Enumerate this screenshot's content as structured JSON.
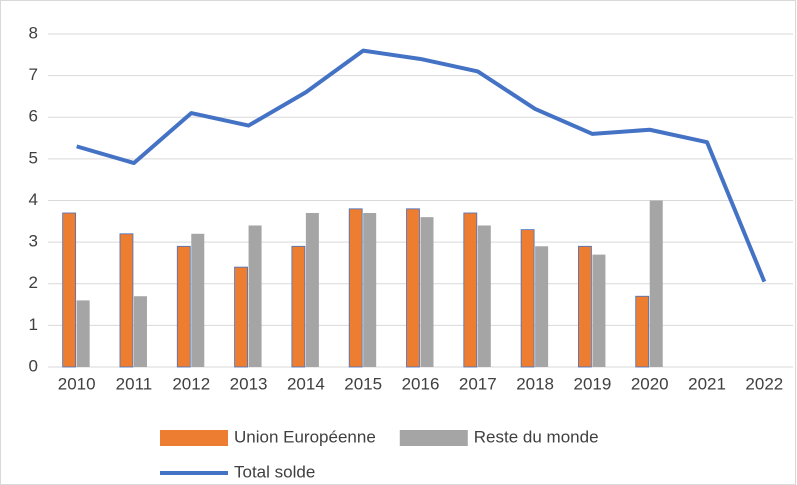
{
  "chart_data": {
    "type": "bar",
    "categories": [
      "2010",
      "2011",
      "2012",
      "2013",
      "2014",
      "2015",
      "2016",
      "2017",
      "2018",
      "2019",
      "2020",
      "2021",
      "2022"
    ],
    "series": [
      {
        "name": "Union Européenne",
        "color": "#ed7d31",
        "values": [
          3.7,
          3.2,
          2.9,
          2.4,
          2.9,
          3.8,
          3.8,
          3.7,
          3.3,
          2.9,
          1.7,
          null,
          null
        ]
      },
      {
        "name": "Reste du monde",
        "color": "#a5a5a5",
        "values": [
          1.6,
          1.7,
          3.2,
          3.4,
          3.7,
          3.7,
          3.6,
          3.4,
          2.9,
          2.7,
          4.0,
          null,
          null
        ]
      },
      {
        "name": "Total solde",
        "color": "#4472c4",
        "type": "line",
        "values": [
          5.3,
          4.9,
          6.1,
          5.8,
          6.6,
          7.6,
          7.4,
          7.1,
          6.2,
          5.6,
          5.7,
          5.4,
          2.05
        ]
      }
    ],
    "ylim": [
      0,
      8
    ],
    "yticks": [
      0,
      1,
      2,
      3,
      4,
      5,
      6,
      7,
      8
    ],
    "grid": true,
    "legend": "bottom"
  }
}
